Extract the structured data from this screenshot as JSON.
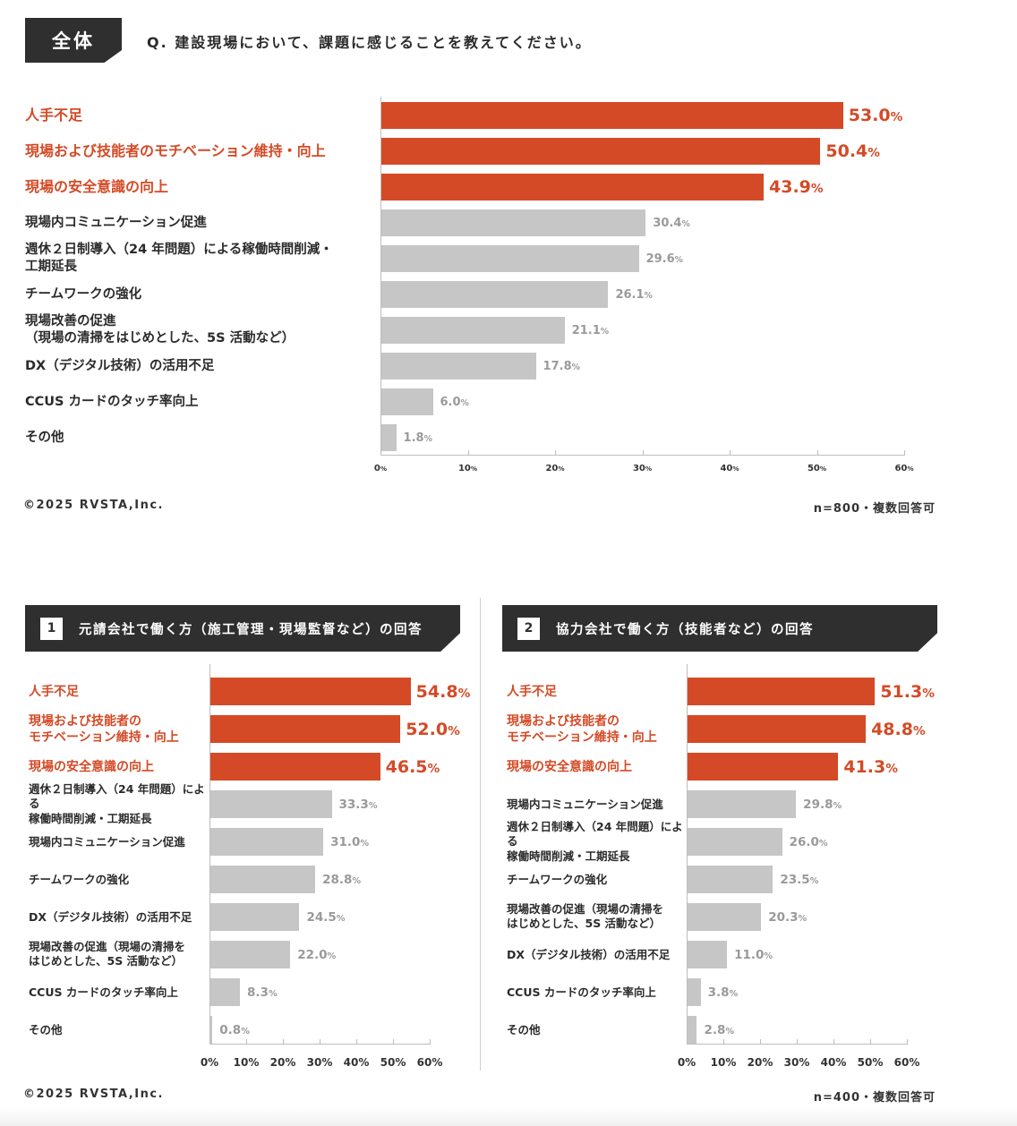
{
  "header": {
    "tag": "全体",
    "question": "Q. 建設現場において、課題に感じることを教えてください。"
  },
  "footer_top": {
    "copyright": "©2025 RVSTA,Inc.",
    "note": "n=800・複数回答可"
  },
  "footer_bottom": {
    "copyright": "©2025 RVSTA,Inc.",
    "note": "n=400・複数回答可"
  },
  "sections": [
    {
      "number": "1",
      "title": "元請会社で働く方（施工管理・現場監督など）の回答"
    },
    {
      "number": "2",
      "title": "協力会社で働く方（技能者など）の回答"
    }
  ],
  "colors": {
    "highlight": "#d44a26",
    "neutral": "#c6c6c6",
    "neutral_text": "#9a9a9a",
    "dark": "#2f2f2f"
  },
  "chart_data": [
    {
      "type": "bar",
      "orientation": "horizontal",
      "categories": [
        "人手不足",
        "現場および技能者のモチベーション維持・向上",
        "現場の安全意識の向上",
        "現場内コミュニケーション促進",
        "週休２日制導入（24 年問題）による稼働時間削減・\n工期延長",
        "チームワークの強化",
        "現場改善の促進\n（現場の清掃をはじめとした、5S 活動など）",
        "DX（デジタル技術）の活用不足",
        "CCUS カードのタッチ率向上",
        "その他"
      ],
      "values": [
        53.0,
        50.4,
        43.9,
        30.4,
        29.6,
        26.1,
        21.1,
        17.8,
        6.0,
        1.8
      ],
      "highlighted_top": 3,
      "xlim": [
        0,
        60
      ],
      "ticks": [
        0,
        10,
        20,
        30,
        40,
        50,
        60
      ],
      "tick_labels": [
        "0",
        "10",
        "20",
        "30",
        "40",
        "50",
        "60"
      ],
      "unit": "%"
    },
    {
      "type": "bar",
      "orientation": "horizontal",
      "categories": [
        "人手不足",
        "現場および技能者の\nモチベーション維持・向上",
        "現場の安全意識の向上",
        "週休２日制導入（24 年問題）による\n稼働時間削減・工期延長",
        "現場内コミュニケーション促進",
        "チームワークの強化",
        "DX（デジタル技術）の活用不足",
        "現場改善の促進（現場の清掃を\nはじめとした、5S 活動など）",
        "CCUS カードのタッチ率向上",
        "その他"
      ],
      "values": [
        54.8,
        52.0,
        46.5,
        33.3,
        31.0,
        28.8,
        24.5,
        22.0,
        8.3,
        0.8
      ],
      "highlighted_top": 3,
      "xlim": [
        0,
        60
      ],
      "ticks": [
        0,
        10,
        20,
        30,
        40,
        50,
        60
      ],
      "tick_labels": [
        "0%",
        "10%",
        "20%",
        "30%",
        "40%",
        "50%",
        "60%"
      ],
      "unit": "%"
    },
    {
      "type": "bar",
      "orientation": "horizontal",
      "categories": [
        "人手不足",
        "現場および技能者の\nモチベーション維持・向上",
        "現場の安全意識の向上",
        "現場内コミュニケーション促進",
        "週休２日制導入（24 年問題）による\n稼働時間削減・工期延長",
        "チームワークの強化",
        "現場改善の促進（現場の清掃を\nはじめとした、5S 活動など）",
        "DX（デジタル技術）の活用不足",
        "CCUS カードのタッチ率向上",
        "その他"
      ],
      "values": [
        51.3,
        48.8,
        41.3,
        29.8,
        26.0,
        23.5,
        20.3,
        11.0,
        3.8,
        2.8
      ],
      "highlighted_top": 3,
      "xlim": [
        0,
        60
      ],
      "ticks": [
        0,
        10,
        20,
        30,
        40,
        50,
        60
      ],
      "tick_labels": [
        "0%",
        "10%",
        "20%",
        "30%",
        "40%",
        "50%",
        "60%"
      ],
      "unit": "%"
    }
  ]
}
